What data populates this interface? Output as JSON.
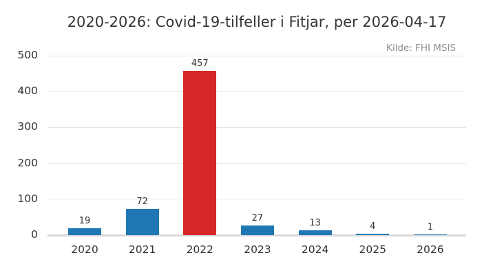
{
  "chart_data": {
    "type": "bar",
    "title": "2020-2026: Covid-19-tilfeller i Fitjar, per 2026-04-17",
    "source": "Kilde: FHI MSIS",
    "categories": [
      "2020",
      "2021",
      "2022",
      "2023",
      "2024",
      "2025",
      "2026"
    ],
    "values": [
      19,
      72,
      457,
      27,
      13,
      4,
      1
    ],
    "bar_colors": [
      "#1f77b4",
      "#1f77b4",
      "#d62728",
      "#1f77b4",
      "#1f77b4",
      "#1f77b4",
      "#1f77b4"
    ],
    "highlighted_category": "2022",
    "yticks": [
      0,
      100,
      200,
      300,
      400,
      500
    ],
    "ylim": [
      0,
      500
    ],
    "xlabel": "",
    "ylabel": "",
    "grid": true,
    "legend": false,
    "colors": {
      "bar_default": "#1f77b4",
      "bar_highlight": "#d62728",
      "gridline": "#e7e7e7",
      "axis_baseline": "#d9d9d9",
      "title_text": "#363636",
      "tick_text": "#333333",
      "source_text": "#8f8f8f",
      "background": "#ffffff"
    }
  }
}
